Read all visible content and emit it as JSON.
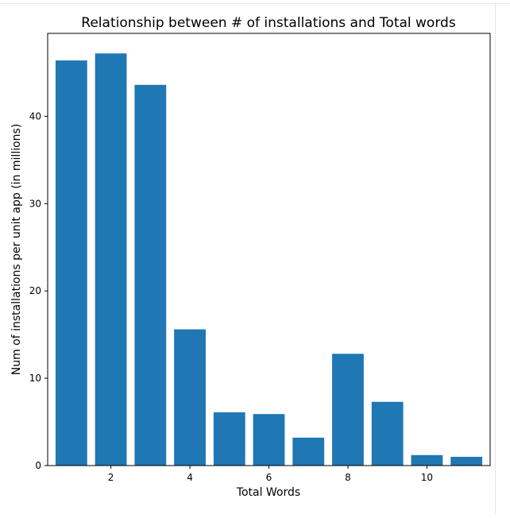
{
  "chart_data": {
    "type": "bar",
    "title": "Relationship between # of installations and Total words",
    "xlabel": "Total Words",
    "ylabel": "Num of installations per unit app (in millions)",
    "x": [
      1,
      2,
      3,
      4,
      5,
      6,
      7,
      8,
      9,
      10,
      11
    ],
    "values": [
      46.4,
      47.2,
      43.6,
      15.6,
      6.1,
      5.9,
      3.2,
      12.8,
      7.3,
      1.2,
      1.0
    ],
    "xlim": [
      0.4,
      11.6
    ],
    "ylim": [
      0,
      49.5
    ],
    "xticks": [
      2,
      4,
      6,
      8,
      10
    ],
    "yticks": [
      0,
      10,
      20,
      30,
      40
    ],
    "bar_color": "#1f77b4",
    "grid": false
  }
}
